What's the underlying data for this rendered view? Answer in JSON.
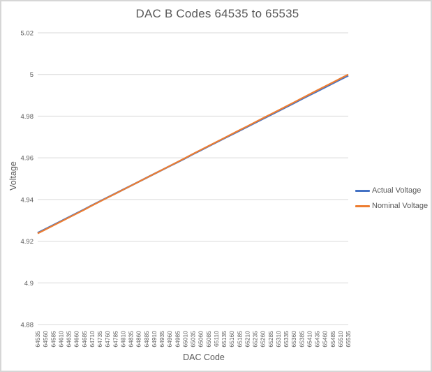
{
  "chart_title": "DAC B Codes 64535 to 65535",
  "colors": {
    "actual_line": "#4472C4",
    "nominal_line": "#ED7D31",
    "gridline": "#D9D9D9",
    "text": "#595959",
    "border": "#D6D6D6"
  },
  "chart_data": {
    "type": "line",
    "title": "DAC B Codes 64535 to 65535",
    "xlabel": "DAC Code",
    "ylabel": "Voltage",
    "ylim": [
      4.88,
      5.02
    ],
    "grid": true,
    "legend_position": "right",
    "y_ticks": [
      5.02,
      5,
      4.98,
      4.96,
      4.94,
      4.92,
      4.9,
      4.88
    ],
    "y_tick_labels": [
      "5.02",
      "5",
      "4.98",
      "4.96",
      "4.94",
      "4.92",
      "4.9",
      "4.88"
    ],
    "x": [
      64535,
      64560,
      64585,
      64610,
      64635,
      64660,
      64685,
      64710,
      64735,
      64760,
      64785,
      64810,
      64835,
      64860,
      64885,
      64910,
      64935,
      64960,
      64985,
      65010,
      65035,
      65060,
      65085,
      65110,
      65135,
      65160,
      65185,
      65210,
      65235,
      65260,
      65285,
      65310,
      65335,
      65360,
      65385,
      65410,
      65435,
      65460,
      65485,
      65510,
      65535
    ],
    "series": [
      {
        "name": "Actual Voltage",
        "color": "#4472C4",
        "values": [
          4.9237,
          4.9256,
          4.9275,
          4.9294,
          4.9313,
          4.9332,
          4.9351,
          4.9371,
          4.939,
          4.9409,
          4.9428,
          4.9447,
          4.9466,
          4.9485,
          4.9504,
          4.9523,
          4.9542,
          4.9561,
          4.958,
          4.9599,
          4.9619,
          4.9638,
          4.9657,
          4.9676,
          4.9695,
          4.9714,
          4.9733,
          4.9752,
          4.9771,
          4.979,
          4.9809,
          4.9828,
          4.9847,
          4.9866,
          4.9886,
          4.9905,
          4.9924,
          4.9943,
          4.9962,
          4.9981,
          5.0
        ]
      },
      {
        "name": "Nominal Voltage",
        "color": "#ED7D31",
        "values": [
          4.9237,
          4.9256,
          4.9275,
          4.9294,
          4.9313,
          4.9332,
          4.9351,
          4.9371,
          4.939,
          4.9409,
          4.9428,
          4.9447,
          4.9466,
          4.9485,
          4.9504,
          4.9523,
          4.9542,
          4.9561,
          4.958,
          4.9599,
          4.9619,
          4.9638,
          4.9657,
          4.9676,
          4.9695,
          4.9714,
          4.9733,
          4.9752,
          4.9771,
          4.979,
          4.9809,
          4.9828,
          4.9847,
          4.9866,
          4.9886,
          4.9905,
          4.9924,
          4.9943,
          4.9962,
          4.9981,
          5.0
        ]
      }
    ]
  }
}
